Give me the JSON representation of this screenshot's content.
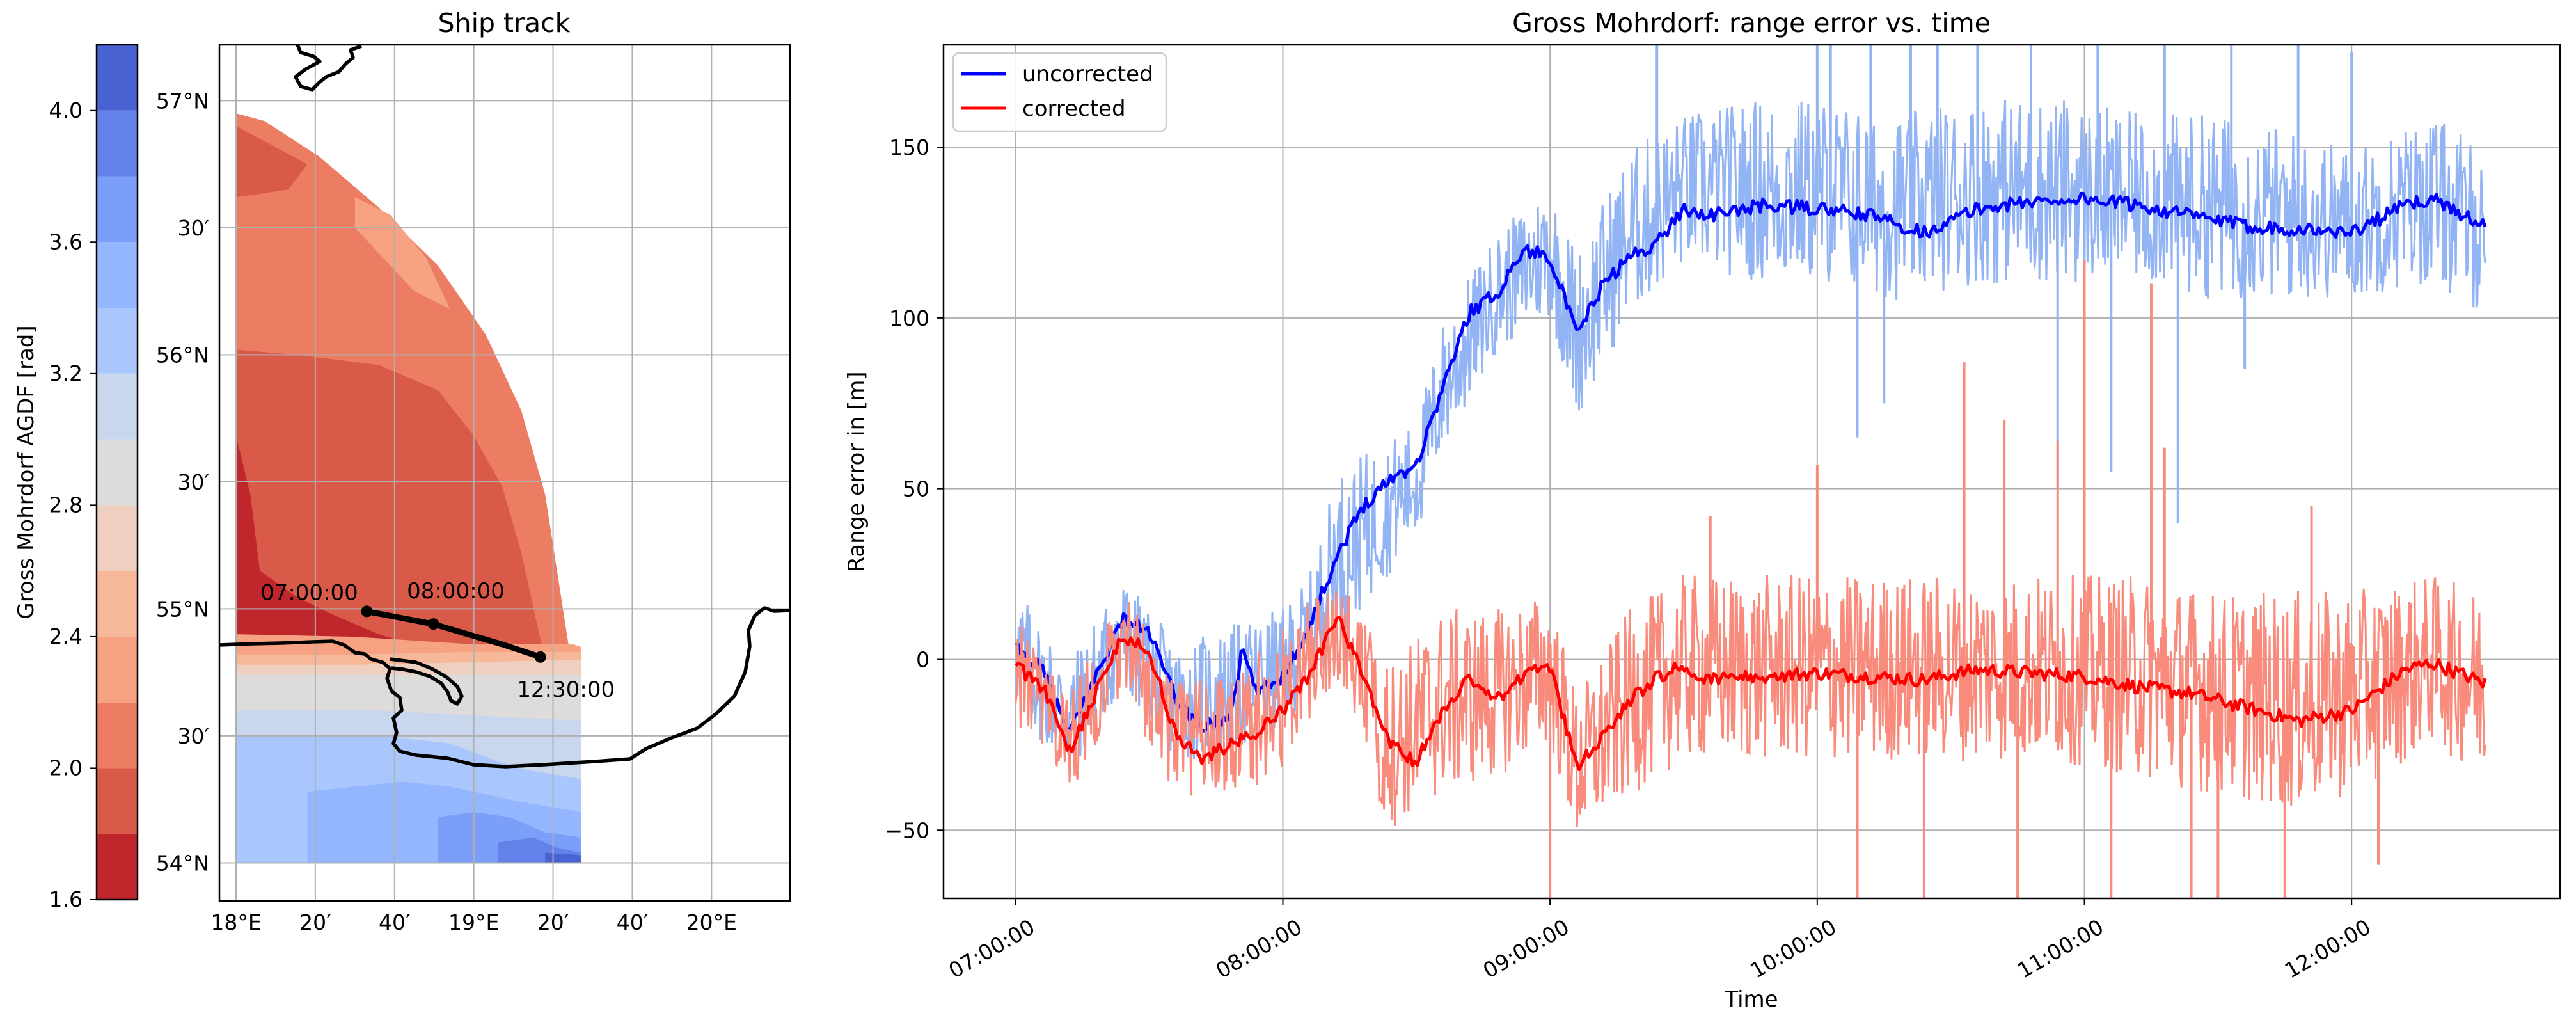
{
  "chart_data": [
    {
      "type": "map",
      "title": "Ship track",
      "colorbar": {
        "label": "Gross Mohrdorf AGDF [rad]",
        "ticks": [
          "1.6",
          "2.0",
          "2.4",
          "2.8",
          "3.2",
          "3.6",
          "4.0"
        ],
        "range": [
          1.6,
          4.2
        ],
        "levels": [
          {
            "from": 1.6,
            "to": 1.8,
            "color": "#c0272d"
          },
          {
            "from": 1.8,
            "to": 2.0,
            "color": "#da5a49"
          },
          {
            "from": 2.0,
            "to": 2.2,
            "color": "#ec7d63"
          },
          {
            "from": 2.2,
            "to": 2.4,
            "color": "#f6a283"
          },
          {
            "from": 2.4,
            "to": 2.6,
            "color": "#f7b799"
          },
          {
            "from": 2.6,
            "to": 2.8,
            "color": "#efcfbf"
          },
          {
            "from": 2.8,
            "to": 3.0,
            "color": "#dddcdb"
          },
          {
            "from": 3.0,
            "to": 3.2,
            "color": "#c8d6ee"
          },
          {
            "from": 3.2,
            "to": 3.4,
            "color": "#aac7fd"
          },
          {
            "from": 3.4,
            "to": 3.6,
            "color": "#94b6ff"
          },
          {
            "from": 3.6,
            "to": 3.8,
            "color": "#7b9ff9"
          },
          {
            "from": 3.8,
            "to": 4.0,
            "color": "#6282ea"
          },
          {
            "from": 4.0,
            "to": 4.2,
            "color": "#4a63d3"
          }
        ]
      },
      "lon_range": [
        17.93,
        20.33
      ],
      "lat_range": [
        53.85,
        57.22
      ],
      "lon_ticks": [
        {
          "lon": 18.0,
          "label": "18°E"
        },
        {
          "lon": 18.3333,
          "label": "20′"
        },
        {
          "lon": 18.6667,
          "label": "40′"
        },
        {
          "lon": 19.0,
          "label": "19°E"
        },
        {
          "lon": 19.3333,
          "label": "20′"
        },
        {
          "lon": 19.6667,
          "label": "40′"
        },
        {
          "lon": 20.0,
          "label": "20°E"
        }
      ],
      "lat_ticks": [
        {
          "lat": 54.0,
          "label": "54°N"
        },
        {
          "lat": 54.5,
          "label": "30′"
        },
        {
          "lat": 55.0,
          "label": "55°N"
        },
        {
          "lat": 55.5,
          "label": "30′"
        },
        {
          "lat": 56.0,
          "label": "56°N"
        },
        {
          "lat": 56.5,
          "label": "30′"
        },
        {
          "lat": 57.0,
          "label": "57°N"
        }
      ],
      "track": [
        {
          "lon": 18.55,
          "lat": 54.99
        },
        {
          "lon": 18.83,
          "lat": 54.94
        },
        {
          "lon": 19.12,
          "lat": 54.86
        },
        {
          "lon": 19.25,
          "lat": 54.82
        },
        {
          "lon": 19.28,
          "lat": 54.81
        }
      ],
      "track_labels": [
        {
          "label": "07:00:00",
          "lon": 18.55,
          "lat": 54.99
        },
        {
          "label": "08:00:00",
          "lon": 18.83,
          "lat": 54.94
        },
        {
          "label": "12:30:00",
          "lon": 19.28,
          "lat": 54.81
        }
      ]
    },
    {
      "type": "line",
      "title": "Gross Mohrdorf: range error vs. time",
      "xlabel": "Time",
      "ylabel": "Range error in [m]",
      "xlim_hours": [
        6.73,
        12.78
      ],
      "ylim": [
        -70,
        180
      ],
      "x_ticks": [
        "07:00:00",
        "08:00:00",
        "09:00:00",
        "10:00:00",
        "11:00:00",
        "12:00:00"
      ],
      "y_ticks": [
        -50,
        0,
        50,
        100,
        150
      ],
      "legend": {
        "position": "top-left",
        "entries": [
          "uncorrected",
          "corrected"
        ]
      },
      "series": [
        {
          "name": "uncorrected",
          "color": "#0000ff",
          "raw_color": "#92b4f4",
          "mean": [
            [
              7.0,
              3
            ],
            [
              7.1,
              -3
            ],
            [
              7.2,
              -22
            ],
            [
              7.3,
              -5
            ],
            [
              7.4,
              12
            ],
            [
              7.5,
              8
            ],
            [
              7.6,
              -12
            ],
            [
              7.7,
              -20
            ],
            [
              7.8,
              -17
            ],
            [
              7.85,
              3
            ],
            [
              7.9,
              -10
            ],
            [
              8.0,
              -5
            ],
            [
              8.1,
              10
            ],
            [
              8.2,
              30
            ],
            [
              8.3,
              45
            ],
            [
              8.4,
              53
            ],
            [
              8.5,
              57
            ],
            [
              8.6,
              80
            ],
            [
              8.7,
              102
            ],
            [
              8.8,
              107
            ],
            [
              8.9,
              120
            ],
            [
              9.0,
              118
            ],
            [
              9.1,
              95
            ],
            [
              9.2,
              110
            ],
            [
              9.3,
              118
            ],
            [
              9.4,
              122
            ],
            [
              9.5,
              132
            ],
            [
              9.6,
              130
            ],
            [
              9.8,
              133
            ],
            [
              10.0,
              132
            ],
            [
              10.2,
              130
            ],
            [
              10.4,
              125
            ],
            [
              10.6,
              132
            ],
            [
              10.8,
              134
            ],
            [
              11.0,
              135
            ],
            [
              11.2,
              133
            ],
            [
              11.4,
              130
            ],
            [
              11.6,
              127
            ],
            [
              11.8,
              126
            ],
            [
              12.0,
              125
            ],
            [
              12.2,
              133
            ],
            [
              12.3,
              135
            ],
            [
              12.5,
              127
            ]
          ],
          "band": [
            [
              7.0,
              -15,
              22
            ],
            [
              7.2,
              -35,
              0
            ],
            [
              7.4,
              -10,
              25
            ],
            [
              7.6,
              -30,
              5
            ],
            [
              7.8,
              -28,
              10
            ],
            [
              8.0,
              -20,
              15
            ],
            [
              8.1,
              -10,
              25
            ],
            [
              8.2,
              5,
              55
            ],
            [
              8.4,
              25,
              65
            ],
            [
              8.5,
              35,
              70
            ],
            [
              8.6,
              60,
              100
            ],
            [
              8.8,
              90,
              125
            ],
            [
              9.0,
              100,
              140
            ],
            [
              9.1,
              70,
              120
            ],
            [
              9.3,
              100,
              150
            ],
            [
              9.5,
              115,
              160
            ],
            [
              9.8,
              110,
              165
            ],
            [
              10.0,
              110,
              165
            ],
            [
              10.3,
              105,
              160
            ],
            [
              10.6,
              110,
              165
            ],
            [
              10.9,
              110,
              165
            ],
            [
              11.2,
              110,
              160
            ],
            [
              11.5,
              105,
              160
            ],
            [
              11.8,
              105,
              155
            ],
            [
              12.0,
              105,
              150
            ],
            [
              12.3,
              110,
              160
            ],
            [
              12.5,
              100,
              150
            ]
          ],
          "spikes": [
            [
              9.4,
              180
            ],
            [
              10.0,
              180
            ],
            [
              10.05,
              180
            ],
            [
              10.2,
              180
            ],
            [
              10.35,
              180
            ],
            [
              10.45,
              180
            ],
            [
              10.6,
              180
            ],
            [
              10.8,
              180
            ],
            [
              11.05,
              180
            ],
            [
              11.3,
              180
            ],
            [
              11.55,
              180
            ],
            [
              11.8,
              180
            ],
            [
              12.0,
              178
            ],
            [
              10.15,
              65
            ],
            [
              10.25,
              75
            ],
            [
              10.9,
              50
            ],
            [
              11.1,
              55
            ],
            [
              11.35,
              40
            ],
            [
              11.6,
              85
            ]
          ]
        },
        {
          "name": "corrected",
          "color": "#ff0000",
          "raw_color": "#f98b7c",
          "mean": [
            [
              7.0,
              -2
            ],
            [
              7.1,
              -8
            ],
            [
              7.2,
              -27
            ],
            [
              7.3,
              -10
            ],
            [
              7.4,
              7
            ],
            [
              7.5,
              2
            ],
            [
              7.6,
              -22
            ],
            [
              7.7,
              -29
            ],
            [
              7.8,
              -25
            ],
            [
              7.9,
              -22
            ],
            [
              8.0,
              -15
            ],
            [
              8.1,
              -5
            ],
            [
              8.2,
              13
            ],
            [
              8.3,
              -5
            ],
            [
              8.4,
              -25
            ],
            [
              8.5,
              -30
            ],
            [
              8.6,
              -15
            ],
            [
              8.7,
              -5
            ],
            [
              8.8,
              -12
            ],
            [
              8.9,
              -5
            ],
            [
              9.0,
              -2
            ],
            [
              9.1,
              -32
            ],
            [
              9.2,
              -22
            ],
            [
              9.3,
              -12
            ],
            [
              9.4,
              -5
            ],
            [
              9.5,
              -2
            ],
            [
              9.6,
              -6
            ],
            [
              9.8,
              -5
            ],
            [
              10.0,
              -4
            ],
            [
              10.2,
              -5
            ],
            [
              10.4,
              -6
            ],
            [
              10.6,
              -3
            ],
            [
              10.8,
              -4
            ],
            [
              11.0,
              -5
            ],
            [
              11.2,
              -8
            ],
            [
              11.4,
              -10
            ],
            [
              11.6,
              -14
            ],
            [
              11.8,
              -18
            ],
            [
              12.0,
              -15
            ],
            [
              12.2,
              -3
            ],
            [
              12.3,
              -1
            ],
            [
              12.5,
              -7
            ]
          ],
          "band": [
            [
              7.0,
              -20,
              15
            ],
            [
              7.2,
              -40,
              -10
            ],
            [
              7.4,
              -10,
              20
            ],
            [
              7.6,
              -40,
              -5
            ],
            [
              7.8,
              -40,
              -5
            ],
            [
              8.0,
              -35,
              10
            ],
            [
              8.2,
              -5,
              25
            ],
            [
              8.4,
              -50,
              0
            ],
            [
              8.6,
              -40,
              15
            ],
            [
              8.8,
              -35,
              15
            ],
            [
              9.0,
              -25,
              20
            ],
            [
              9.1,
              -55,
              -10
            ],
            [
              9.3,
              -40,
              15
            ],
            [
              9.5,
              -30,
              25
            ],
            [
              9.8,
              -30,
              25
            ],
            [
              10.0,
              -30,
              25
            ],
            [
              10.3,
              -30,
              25
            ],
            [
              10.6,
              -30,
              25
            ],
            [
              10.9,
              -30,
              25
            ],
            [
              11.2,
              -35,
              25
            ],
            [
              11.5,
              -40,
              20
            ],
            [
              11.8,
              -45,
              20
            ],
            [
              12.0,
              -40,
              20
            ],
            [
              12.3,
              -25,
              25
            ],
            [
              12.5,
              -35,
              20
            ]
          ],
          "spikes": [
            [
              9.0,
              -70
            ],
            [
              10.0,
              57
            ],
            [
              10.15,
              -70
            ],
            [
              10.4,
              -70
            ],
            [
              10.55,
              87
            ],
            [
              10.7,
              70
            ],
            [
              10.75,
              -70
            ],
            [
              11.0,
              117
            ],
            [
              11.1,
              -70
            ],
            [
              11.25,
              110
            ],
            [
              11.4,
              -70
            ],
            [
              11.5,
              -70
            ],
            [
              11.75,
              -70
            ],
            [
              12.1,
              -60
            ],
            [
              9.6,
              42
            ],
            [
              10.9,
              64
            ],
            [
              11.3,
              62
            ],
            [
              11.85,
              45
            ]
          ]
        }
      ]
    }
  ]
}
